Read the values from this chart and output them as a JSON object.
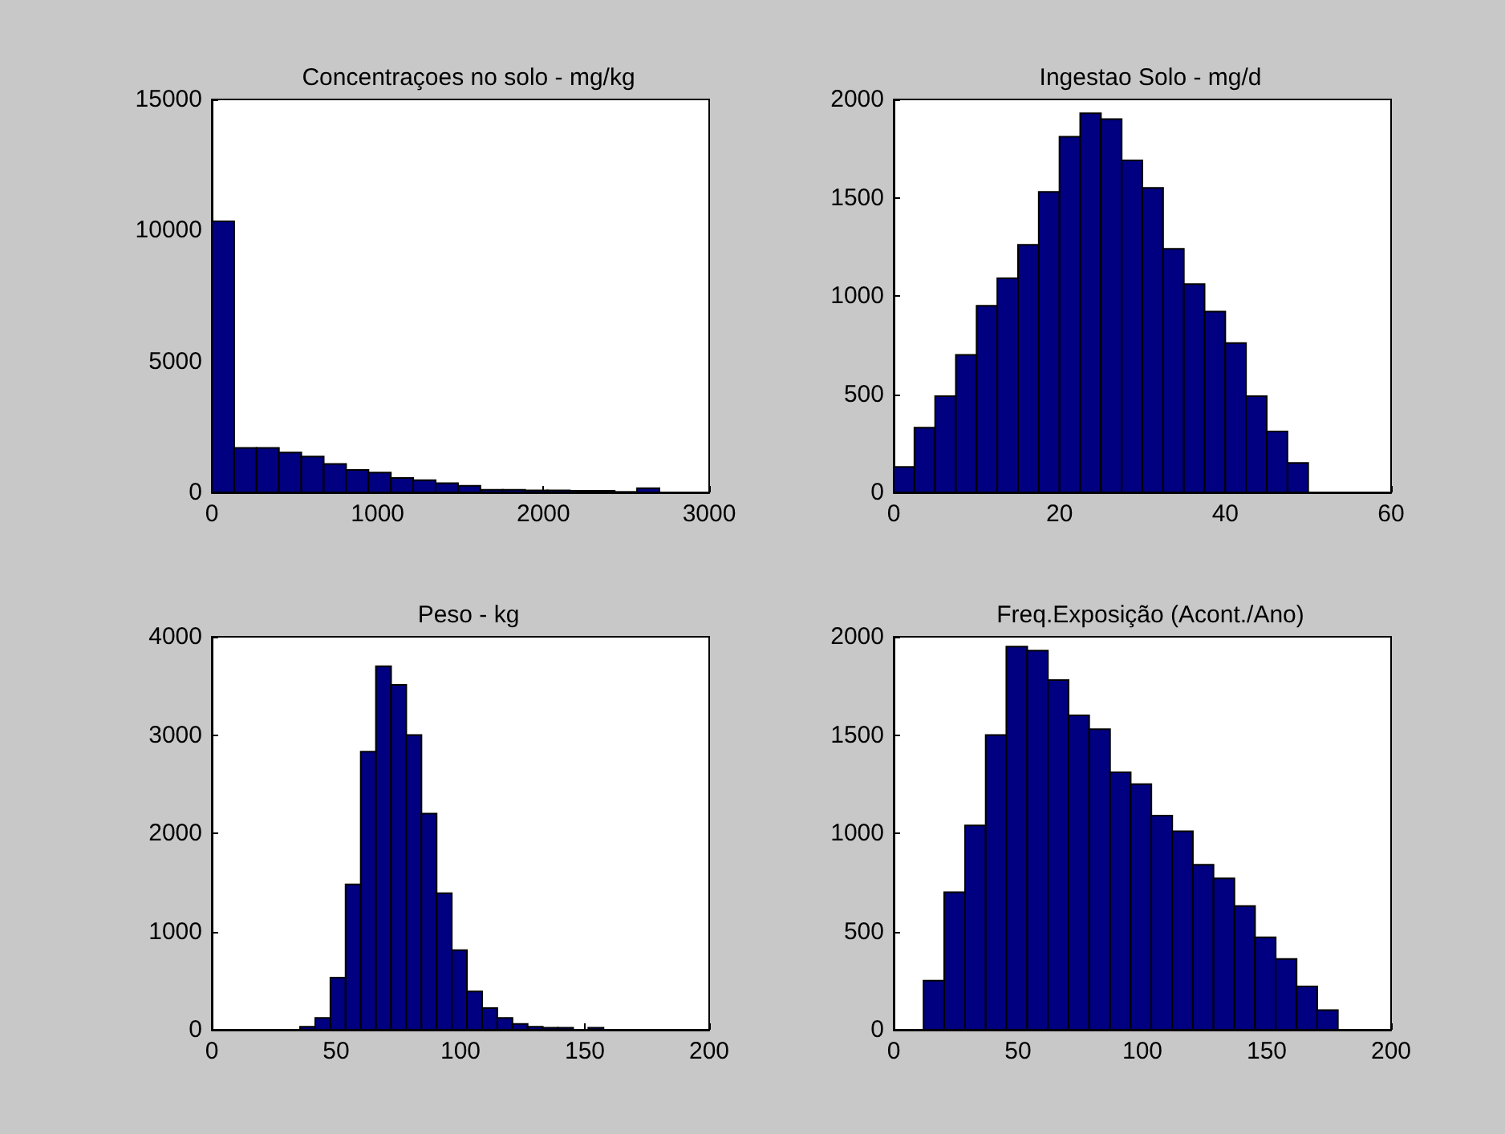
{
  "chart_data": [
    {
      "type": "histogram",
      "title": "Concentraçoes no solo - mg/kg",
      "color": "#000080",
      "bins": [
        0,
        135,
        270,
        405,
        540,
        675,
        810,
        945,
        1080,
        1215,
        1350,
        1485,
        1620,
        1755,
        1890,
        2025,
        2160,
        2295,
        2430,
        2565,
        2700
      ],
      "values": [
        10350,
        1700,
        1700,
        1520,
        1370,
        1090,
        860,
        760,
        550,
        470,
        350,
        250,
        100,
        100,
        80,
        80,
        60,
        60,
        20,
        160
      ],
      "xlim": [
        0,
        3000
      ],
      "xticks": [
        0,
        1000,
        2000,
        3000
      ],
      "ylim": [
        0,
        15000
      ],
      "yticks": [
        0,
        5000,
        10000,
        15000
      ]
    },
    {
      "type": "histogram",
      "title": "Ingestao Solo - mg/d",
      "color": "#000080",
      "bins": [
        0,
        2.5,
        5,
        7.5,
        10,
        12.5,
        15,
        17.5,
        20,
        22.5,
        25,
        27.5,
        30,
        32.5,
        35,
        37.5,
        40,
        42.5,
        45,
        47.5,
        50
      ],
      "values": [
        130,
        330,
        490,
        700,
        950,
        1090,
        1260,
        1530,
        1810,
        1930,
        1900,
        1690,
        1550,
        1240,
        1060,
        920,
        760,
        490,
        310,
        150
      ],
      "xlim": [
        0,
        60
      ],
      "xticks": [
        0,
        20,
        40,
        60
      ],
      "ylim": [
        0,
        2000
      ],
      "yticks": [
        0,
        500,
        1000,
        1500,
        2000
      ]
    },
    {
      "type": "histogram",
      "title": "Peso - kg",
      "color": "#000080",
      "bins": [
        35.5,
        41.6,
        47.7,
        53.8,
        59.9,
        66,
        72.1,
        78.2,
        84.3,
        90.4,
        96.5,
        102.6,
        108.7,
        114.8,
        120.9,
        127,
        133.1,
        139.2,
        145.3,
        151.4,
        157.5
      ],
      "values": [
        30,
        120,
        530,
        1480,
        2830,
        3700,
        3510,
        3000,
        2200,
        1390,
        810,
        390,
        220,
        120,
        60,
        30,
        20,
        20,
        null,
        20
      ],
      "xlim": [
        0,
        200
      ],
      "xticks": [
        0,
        50,
        100,
        150,
        200
      ],
      "ylim": [
        0,
        4000
      ],
      "yticks": [
        0,
        1000,
        2000,
        3000,
        4000
      ]
    },
    {
      "type": "histogram",
      "title": "Freq.Exposição (Acont./Ano)",
      "color": "#000080",
      "bins": [
        12,
        20.3,
        28.7,
        37,
        45.3,
        53.7,
        62,
        70.3,
        78.6,
        87,
        95.3,
        103.6,
        112,
        120.3,
        128.6,
        137,
        145.3,
        153.6,
        162,
        170.3,
        178.6
      ],
      "values": [
        250,
        700,
        1040,
        1500,
        1950,
        1930,
        1780,
        1600,
        1530,
        1310,
        1250,
        1090,
        1010,
        840,
        770,
        630,
        470,
        360,
        220,
        100
      ],
      "xlim": [
        0,
        200
      ],
      "xticks": [
        0,
        50,
        100,
        150,
        200
      ],
      "ylim": [
        0,
        2000
      ],
      "yticks": [
        0,
        500,
        1000,
        1500,
        2000
      ]
    }
  ]
}
